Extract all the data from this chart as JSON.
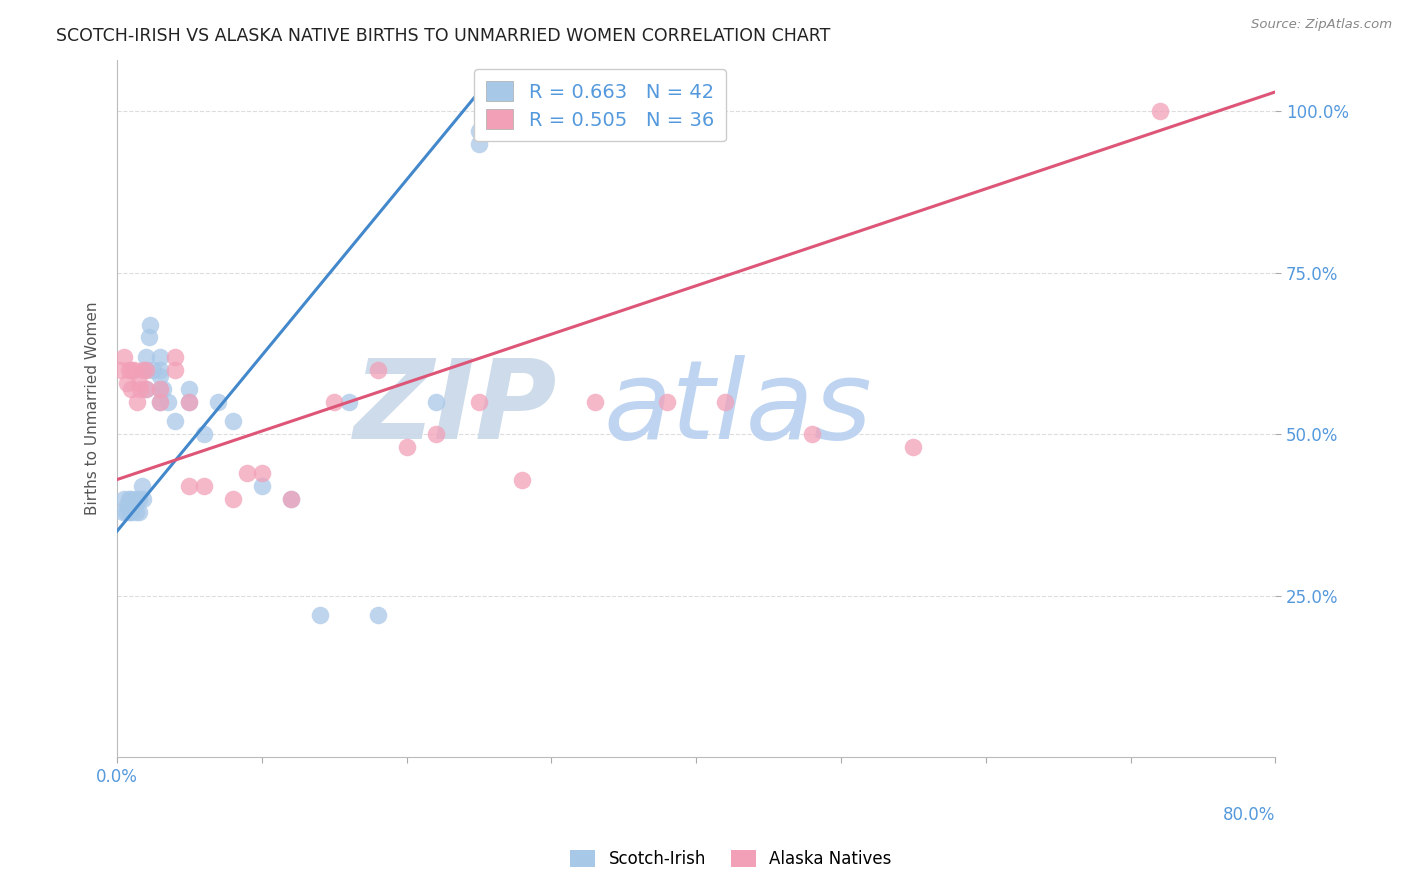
{
  "title": "SCOTCH-IRISH VS ALASKA NATIVE BIRTHS TO UNMARRIED WOMEN CORRELATION CHART",
  "source": "Source: ZipAtlas.com",
  "ylabel": "Births to Unmarried Women",
  "xmin": 0.0,
  "xmax": 0.08,
  "ymin": 0.0,
  "ymax": 1.08,
  "yticks": [
    0.25,
    0.5,
    0.75,
    1.0
  ],
  "ytick_labels": [
    "25.0%",
    "50.0%",
    "75.0%",
    "100.0%"
  ],
  "scotch_irish_R": 0.663,
  "scotch_irish_N": 42,
  "alaska_native_R": 0.505,
  "alaska_native_N": 36,
  "scotch_irish_color": "#a8c8e8",
  "alaska_native_color": "#f2a0b8",
  "scotch_irish_line_color": "#4488cc",
  "alaska_native_line_color": "#dd5577",
  "legend_label_1": "Scotch-Irish",
  "legend_label_2": "Alaska Natives",
  "watermark_zip": "ZIP",
  "watermark_atlas": "atlas",
  "watermark_color_zip": "#c8d8e8",
  "watermark_color_atlas": "#b8d0f0",
  "background_color": "#ffffff",
  "grid_color": "#dddddd",
  "title_color": "#222222",
  "axis_label_color": "#5599dd",
  "right_axis_color": "#5599dd",
  "scotch_irish_x": [
    0.0004,
    0.0005,
    0.0006,
    0.0007,
    0.0008,
    0.0009,
    0.001,
    0.001,
    0.0012,
    0.0013,
    0.0013,
    0.0015,
    0.0015,
    0.0017,
    0.0018,
    0.002,
    0.002,
    0.002,
    0.0022,
    0.0023,
    0.0025,
    0.003,
    0.003,
    0.003,
    0.003,
    0.003,
    0.0032,
    0.0035,
    0.004,
    0.005,
    0.005,
    0.006,
    0.007,
    0.008,
    0.01,
    0.012,
    0.014,
    0.016,
    0.018,
    0.022,
    0.025,
    0.025
  ],
  "scotch_irish_y": [
    0.38,
    0.4,
    0.38,
    0.39,
    0.4,
    0.38,
    0.4,
    0.38,
    0.39,
    0.4,
    0.38,
    0.4,
    0.38,
    0.42,
    0.4,
    0.57,
    0.6,
    0.62,
    0.65,
    0.67,
    0.6,
    0.55,
    0.57,
    0.59,
    0.6,
    0.62,
    0.57,
    0.55,
    0.52,
    0.57,
    0.55,
    0.5,
    0.55,
    0.52,
    0.42,
    0.4,
    0.22,
    0.55,
    0.22,
    0.55,
    0.95,
    0.97
  ],
  "alaska_native_x": [
    0.0003,
    0.0005,
    0.0007,
    0.0008,
    0.001,
    0.001,
    0.0012,
    0.0014,
    0.0015,
    0.0016,
    0.0018,
    0.002,
    0.002,
    0.003,
    0.003,
    0.004,
    0.004,
    0.005,
    0.005,
    0.006,
    0.008,
    0.009,
    0.01,
    0.012,
    0.015,
    0.018,
    0.02,
    0.022,
    0.025,
    0.028,
    0.033,
    0.038,
    0.042,
    0.048,
    0.055,
    0.072
  ],
  "alaska_native_y": [
    0.6,
    0.62,
    0.58,
    0.6,
    0.57,
    0.6,
    0.6,
    0.55,
    0.58,
    0.57,
    0.6,
    0.57,
    0.6,
    0.55,
    0.57,
    0.6,
    0.62,
    0.55,
    0.42,
    0.42,
    0.4,
    0.44,
    0.44,
    0.4,
    0.55,
    0.6,
    0.48,
    0.5,
    0.55,
    0.43,
    0.55,
    0.55,
    0.55,
    0.5,
    0.48,
    1.0
  ],
  "blue_trend_x0": 0.0,
  "blue_trend_y0": 0.35,
  "blue_trend_x1": 0.025,
  "blue_trend_y1": 1.03,
  "pink_trend_x0": 0.0,
  "pink_trend_y0": 0.43,
  "pink_trend_x1": 0.08,
  "pink_trend_y1": 1.03
}
